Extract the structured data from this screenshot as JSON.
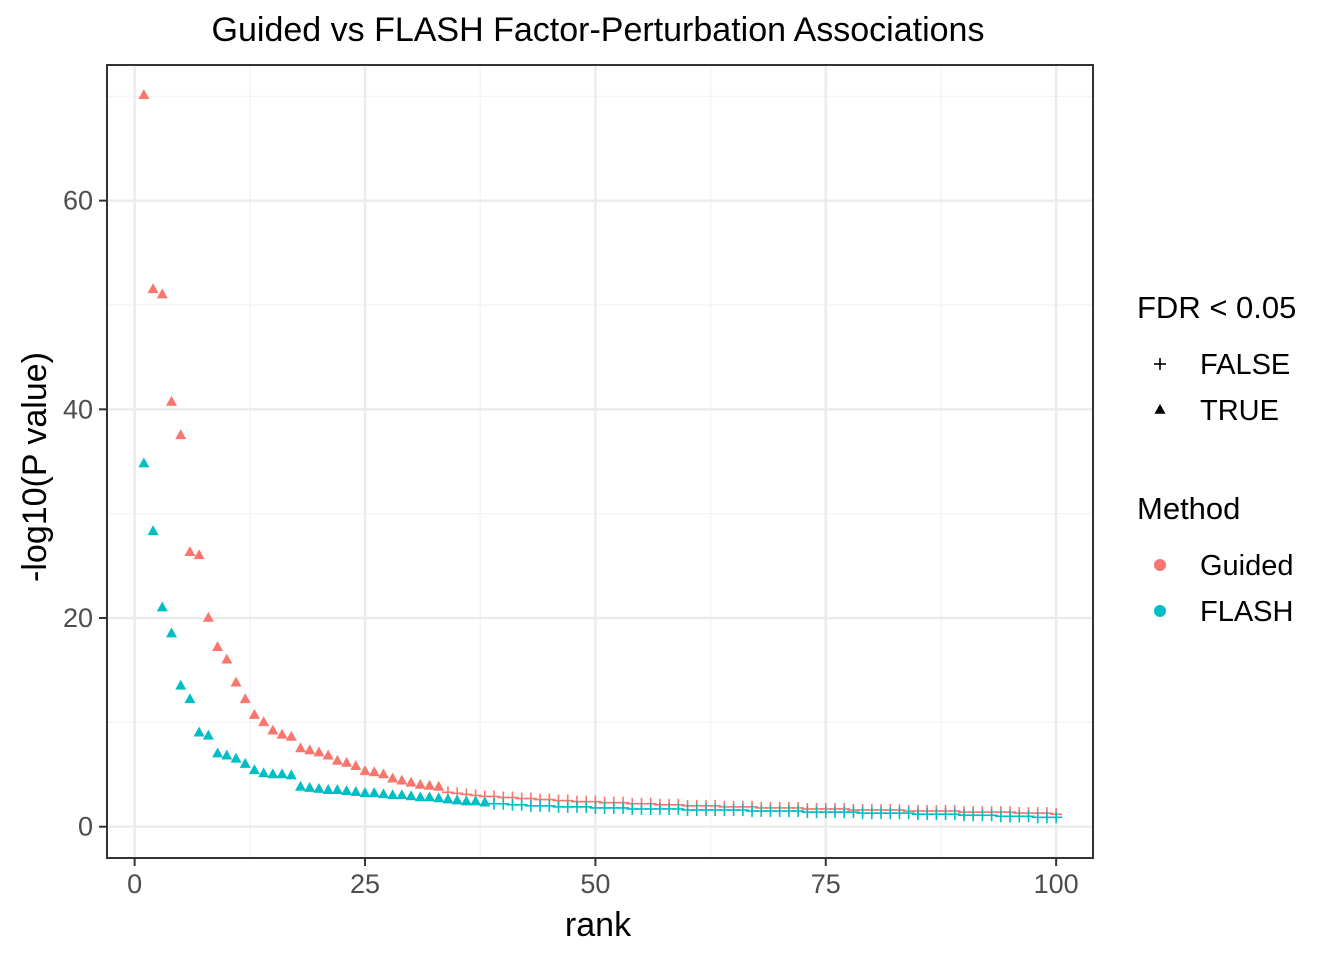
{
  "chart_data": {
    "type": "scatter",
    "title": "Guided vs FLASH Factor-Perturbation Associations",
    "xlabel": "rank",
    "ylabel": "-log10(P value)",
    "xlim": [
      -3,
      104
    ],
    "ylim": [
      -3,
      73
    ],
    "x_ticks": [
      0,
      25,
      50,
      75,
      100
    ],
    "y_ticks": [
      0,
      20,
      40,
      60
    ],
    "x_tick_labels": [
      "0",
      "25",
      "50",
      "75",
      "100"
    ],
    "y_tick_labels": [
      "0",
      "20",
      "40",
      "60"
    ],
    "grid": true,
    "legend_position": "right",
    "legend": {
      "shape": {
        "title": "FDR < 0.05",
        "entries": [
          {
            "label": "FALSE",
            "shape": "plus"
          },
          {
            "label": "TRUE",
            "shape": "triangle"
          }
        ]
      },
      "color": {
        "title": "Method",
        "entries": [
          {
            "label": "Guided",
            "color": "#F8766D"
          },
          {
            "label": "FLASH",
            "color": "#00BFC4"
          }
        ]
      }
    },
    "series": [
      {
        "name": "Guided",
        "color": "#F8766D",
        "sig_count": 33,
        "x": [
          1,
          2,
          3,
          4,
          5,
          6,
          7,
          8,
          9,
          10,
          11,
          12,
          13,
          14,
          15,
          16,
          17,
          18,
          19,
          20,
          21,
          22,
          23,
          24,
          25,
          26,
          27,
          28,
          29,
          30,
          31,
          32,
          33,
          34,
          35,
          36,
          37,
          38,
          39,
          40,
          41,
          42,
          43,
          44,
          45,
          46,
          47,
          48,
          49,
          50,
          51,
          52,
          53,
          54,
          55,
          56,
          57,
          58,
          59,
          60,
          61,
          62,
          63,
          64,
          65,
          66,
          67,
          68,
          69,
          70,
          71,
          72,
          73,
          74,
          75,
          76,
          77,
          78,
          79,
          80,
          81,
          82,
          83,
          84,
          85,
          86,
          87,
          88,
          89,
          90,
          91,
          92,
          93,
          94,
          95,
          96,
          97,
          98,
          99,
          100
        ],
        "y": [
          70.1,
          51.5,
          51.0,
          40.7,
          37.5,
          26.3,
          26.0,
          20.0,
          17.2,
          16.0,
          13.8,
          12.2,
          10.7,
          10.0,
          9.2,
          8.8,
          8.6,
          7.5,
          7.3,
          7.1,
          6.8,
          6.3,
          6.1,
          5.8,
          5.3,
          5.2,
          5.0,
          4.6,
          4.4,
          4.2,
          4.0,
          3.9,
          3.8,
          3.3,
          3.2,
          3.1,
          3.0,
          2.9,
          2.9,
          2.8,
          2.8,
          2.7,
          2.7,
          2.6,
          2.6,
          2.5,
          2.5,
          2.4,
          2.4,
          2.4,
          2.3,
          2.3,
          2.3,
          2.2,
          2.2,
          2.2,
          2.1,
          2.1,
          2.1,
          2.0,
          2.0,
          2.0,
          2.0,
          1.9,
          1.9,
          1.9,
          1.9,
          1.8,
          1.8,
          1.8,
          1.8,
          1.8,
          1.7,
          1.7,
          1.7,
          1.7,
          1.7,
          1.6,
          1.6,
          1.6,
          1.6,
          1.6,
          1.6,
          1.5,
          1.5,
          1.5,
          1.5,
          1.5,
          1.5,
          1.4,
          1.4,
          1.4,
          1.4,
          1.4,
          1.4,
          1.3,
          1.3,
          1.3,
          1.3,
          1.2
        ]
      },
      {
        "name": "FLASH",
        "color": "#00BFC4",
        "sig_count": 38,
        "x": [
          1,
          2,
          3,
          4,
          5,
          6,
          7,
          8,
          9,
          10,
          11,
          12,
          13,
          14,
          15,
          16,
          17,
          18,
          19,
          20,
          21,
          22,
          23,
          24,
          25,
          26,
          27,
          28,
          29,
          30,
          31,
          32,
          33,
          34,
          35,
          36,
          37,
          38,
          39,
          40,
          41,
          42,
          43,
          44,
          45,
          46,
          47,
          48,
          49,
          50,
          51,
          52,
          53,
          54,
          55,
          56,
          57,
          58,
          59,
          60,
          61,
          62,
          63,
          64,
          65,
          66,
          67,
          68,
          69,
          70,
          71,
          72,
          73,
          74,
          75,
          76,
          77,
          78,
          79,
          80,
          81,
          82,
          83,
          84,
          85,
          86,
          87,
          88,
          89,
          90,
          91,
          92,
          93,
          94,
          95,
          96,
          97,
          98,
          99,
          100
        ],
        "y": [
          34.8,
          28.3,
          21.0,
          18.5,
          13.5,
          12.2,
          9.0,
          8.7,
          7.0,
          6.8,
          6.5,
          6.0,
          5.4,
          5.1,
          5.0,
          5.0,
          4.9,
          3.8,
          3.7,
          3.6,
          3.5,
          3.5,
          3.4,
          3.3,
          3.2,
          3.2,
          3.1,
          3.0,
          3.0,
          2.9,
          2.8,
          2.8,
          2.7,
          2.6,
          2.5,
          2.4,
          2.4,
          2.3,
          2.2,
          2.2,
          2.1,
          2.1,
          2.0,
          2.0,
          2.0,
          1.9,
          1.9,
          1.9,
          1.9,
          1.8,
          1.8,
          1.8,
          1.8,
          1.7,
          1.7,
          1.7,
          1.7,
          1.7,
          1.7,
          1.6,
          1.6,
          1.6,
          1.6,
          1.6,
          1.6,
          1.6,
          1.5,
          1.5,
          1.5,
          1.5,
          1.5,
          1.5,
          1.4,
          1.4,
          1.4,
          1.4,
          1.4,
          1.4,
          1.3,
          1.3,
          1.3,
          1.3,
          1.3,
          1.3,
          1.2,
          1.2,
          1.2,
          1.2,
          1.2,
          1.1,
          1.1,
          1.1,
          1.1,
          1.0,
          1.0,
          1.0,
          1.0,
          0.9,
          0.9,
          0.9
        ]
      }
    ]
  }
}
